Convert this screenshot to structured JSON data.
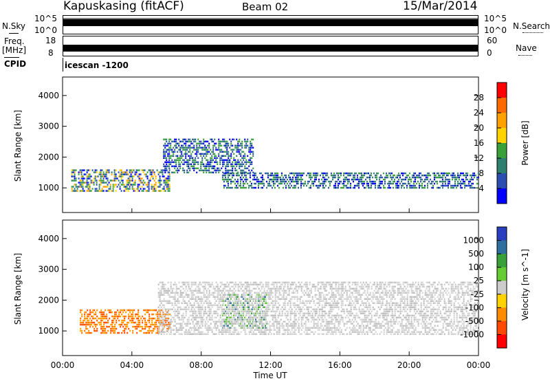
{
  "header": {
    "station": "Kapuskasing (fitACF)",
    "beam": "Beam 02",
    "date": "15/Mar/2014"
  },
  "aux_panels": {
    "nsky_label": "N.Sky",
    "nsearch_label": "N.Search",
    "noise_ticks": [
      "10^5",
      "10^0"
    ],
    "noise_ticks_right": [
      "10^5",
      "10^0"
    ],
    "freq_label_1": "Freq.",
    "freq_label_2": "[MHz]",
    "freq_ticks": [
      "18",
      "8"
    ],
    "nave_label": "Nave",
    "nave_ticks": [
      "60",
      "0"
    ],
    "cpid_label": "CPID",
    "cpid_value": "icescan -1200"
  },
  "chart_data": [
    {
      "type": "heatmap",
      "ylabel": "Slant Range [km]",
      "ylim": [
        200,
        4600
      ],
      "y_ticks": [
        1000,
        2000,
        3000,
        4000
      ],
      "colorbar": {
        "label": "Power [dB]",
        "ticks": [
          "28",
          "24",
          "20",
          "16",
          "12",
          "8",
          "4"
        ],
        "colors": [
          "#ff0000",
          "#ff6a00",
          "#ffa200",
          "#ffd200",
          "#3aa03a",
          "#2f7f6f",
          "#2a4fb0",
          "#0000ff"
        ]
      },
      "echo_regions": [
        {
          "t_start": 0.5,
          "t_end": 6.2,
          "r_low": 900,
          "r_high": 1600,
          "level": "mixed-blue-green-yellow"
        },
        {
          "t_start": 5.8,
          "t_end": 11.0,
          "r_low": 1500,
          "r_high": 2600,
          "level": "blue-green"
        },
        {
          "t_start": 9.2,
          "t_end": 24.0,
          "r_low": 1000,
          "r_high": 1500,
          "level": "blue-green"
        }
      ]
    },
    {
      "type": "heatmap",
      "xlabel": "Time UT",
      "ylabel": "Slant Range [km]",
      "ylim": [
        200,
        4600
      ],
      "y_ticks": [
        1000,
        2000,
        3000,
        4000
      ],
      "x_ticks": [
        "00:00",
        "04:00",
        "08:00",
        "12:00",
        "16:00",
        "20:00",
        "00:00"
      ],
      "colorbar": {
        "label": "Velocity [m s^-1]",
        "ticks": [
          "1000",
          "500",
          "100",
          "25",
          "-25",
          "-100",
          "-500",
          "-1000"
        ],
        "colors": [
          "#2a3fc0",
          "#2f6fa0",
          "#3aa03a",
          "#66cc33",
          "#cccccc",
          "#ffd200",
          "#ff8c00",
          "#ff4a00",
          "#ff0000"
        ]
      },
      "echo_regions": [
        {
          "t_start": 1.0,
          "t_end": 6.2,
          "r_low": 900,
          "r_high": 1700,
          "level": "negative-orange"
        },
        {
          "t_start": 9.2,
          "t_end": 11.8,
          "r_low": 1100,
          "r_high": 2200,
          "level": "positive-green"
        },
        {
          "t_start": 5.5,
          "t_end": 24.0,
          "r_low": 900,
          "r_high": 2600,
          "level": "near-zero-grey"
        }
      ]
    }
  ]
}
